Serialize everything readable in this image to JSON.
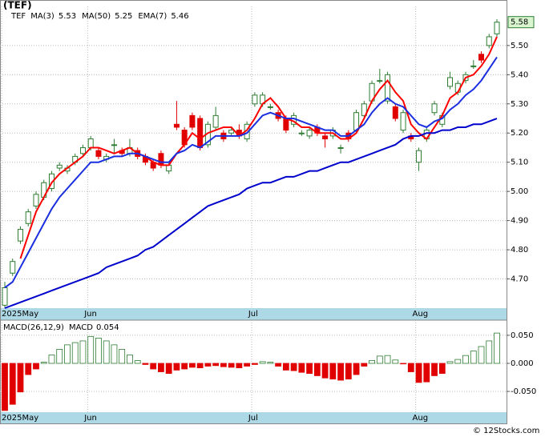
{
  "chart_data": [
    {
      "type": "candlestick",
      "title": "(TEF)",
      "ticker": "TEF",
      "categories": [
        "2025May",
        null,
        null,
        null,
        null,
        null,
        null,
        null,
        null,
        null,
        null,
        "Jun",
        null,
        null,
        null,
        null,
        null,
        null,
        null,
        null,
        null,
        null,
        null,
        null,
        null,
        null,
        null,
        null,
        null,
        null,
        null,
        null,
        "Jul",
        null,
        null,
        null,
        null,
        null,
        null,
        null,
        null,
        null,
        null,
        null,
        null,
        null,
        null,
        null,
        null,
        null,
        null,
        null,
        null,
        "Aug",
        null,
        null,
        null,
        null,
        null,
        null,
        null,
        null,
        null,
        null
      ],
      "open": [
        4.61,
        4.72,
        4.83,
        4.89,
        4.95,
        4.98,
        5.01,
        5.08,
        5.07,
        5.1,
        5.13,
        5.15,
        5.14,
        5.11,
        5.16,
        5.14,
        5.13,
        5.14,
        5.12,
        5.1,
        5.13,
        5.07,
        5.23,
        5.21,
        5.26,
        5.25,
        5.16,
        5.22,
        5.2,
        5.2,
        5.21,
        5.18,
        5.3,
        5.3,
        5.29,
        5.27,
        5.25,
        5.23,
        5.2,
        5.19,
        5.22,
        5.19,
        5.19,
        5.15,
        5.2,
        5.21,
        5.26,
        5.31,
        5.38,
        5.31,
        5.29,
        5.21,
        5.19,
        5.1,
        5.18,
        5.27,
        5.23,
        5.36,
        5.34,
        5.38,
        5.43,
        5.47,
        5.5,
        5.54
      ],
      "high": [
        4.69,
        4.77,
        4.88,
        4.94,
        5.0,
        5.04,
        5.07,
        5.1,
        5.09,
        5.13,
        5.16,
        5.19,
        5.15,
        5.13,
        5.18,
        5.15,
        5.18,
        5.15,
        5.13,
        5.11,
        5.14,
        5.1,
        5.31,
        5.22,
        5.27,
        5.26,
        5.24,
        5.29,
        5.21,
        5.22,
        5.23,
        5.24,
        5.34,
        5.34,
        5.3,
        5.28,
        5.26,
        5.27,
        5.21,
        5.22,
        5.23,
        5.2,
        5.22,
        5.16,
        5.21,
        5.28,
        5.31,
        5.38,
        5.42,
        5.41,
        5.3,
        5.28,
        5.2,
        5.15,
        5.22,
        5.31,
        5.27,
        5.41,
        5.38,
        5.41,
        5.45,
        5.48,
        5.54,
        5.59
      ],
      "low": [
        4.6,
        4.71,
        4.82,
        4.88,
        4.94,
        4.97,
        5.0,
        5.07,
        5.06,
        5.09,
        5.12,
        5.14,
        5.11,
        5.1,
        5.13,
        5.12,
        5.12,
        5.11,
        5.09,
        5.07,
        5.08,
        5.06,
        5.21,
        5.15,
        5.21,
        5.14,
        5.15,
        5.21,
        5.17,
        5.19,
        5.18,
        5.17,
        5.29,
        5.29,
        5.28,
        5.24,
        5.2,
        5.22,
        5.19,
        5.18,
        5.19,
        5.15,
        5.18,
        5.13,
        5.17,
        5.2,
        5.25,
        5.3,
        5.37,
        5.3,
        5.24,
        5.2,
        5.17,
        5.07,
        5.17,
        5.26,
        5.22,
        5.35,
        5.33,
        5.37,
        5.42,
        5.44,
        5.49,
        5.53
      ],
      "close": [
        4.67,
        4.76,
        4.87,
        4.93,
        4.99,
        5.03,
        5.06,
        5.09,
        5.08,
        5.12,
        5.15,
        5.18,
        5.12,
        5.12,
        5.16,
        5.13,
        5.15,
        5.12,
        5.1,
        5.08,
        5.09,
        5.09,
        5.22,
        5.16,
        5.22,
        5.15,
        5.23,
        5.26,
        5.18,
        5.21,
        5.19,
        5.23,
        5.33,
        5.33,
        5.29,
        5.25,
        5.21,
        5.26,
        5.2,
        5.21,
        5.2,
        5.18,
        5.21,
        5.15,
        5.18,
        5.27,
        5.3,
        5.37,
        5.38,
        5.4,
        5.25,
        5.27,
        5.18,
        5.14,
        5.21,
        5.3,
        5.26,
        5.39,
        5.37,
        5.4,
        5.43,
        5.45,
        5.53,
        5.58
      ],
      "up_color": "#2e7d32",
      "down_color": "#e00000",
      "series": [
        {
          "name": "MA(3)",
          "color": "#ff0000",
          "values": [
            null,
            null,
            4.77,
            4.85,
            4.93,
            4.98,
            5.03,
            5.06,
            5.08,
            5.1,
            5.12,
            5.15,
            5.15,
            5.14,
            5.13,
            5.14,
            5.15,
            5.13,
            5.12,
            5.1,
            5.09,
            5.09,
            5.13,
            5.16,
            5.2,
            5.18,
            5.2,
            5.21,
            5.22,
            5.22,
            5.19,
            5.21,
            5.25,
            5.3,
            5.32,
            5.29,
            5.25,
            5.24,
            5.22,
            5.22,
            5.2,
            5.2,
            5.2,
            5.18,
            5.18,
            5.2,
            5.25,
            5.31,
            5.35,
            5.38,
            5.34,
            5.31,
            5.23,
            5.2,
            5.18,
            5.22,
            5.26,
            5.32,
            5.34,
            5.39,
            5.4,
            5.43,
            5.47,
            5.53
          ]
        },
        {
          "name": "MA(50)",
          "color": "#0000cc",
          "values": [
            4.6,
            4.61,
            4.62,
            4.63,
            4.64,
            4.65,
            4.66,
            4.67,
            4.68,
            4.69,
            4.7,
            4.71,
            4.72,
            4.74,
            4.75,
            4.76,
            4.77,
            4.78,
            4.8,
            4.81,
            4.83,
            4.85,
            4.87,
            4.89,
            4.91,
            4.93,
            4.95,
            4.96,
            4.97,
            4.98,
            4.99,
            5.01,
            5.02,
            5.03,
            5.03,
            5.04,
            5.05,
            5.05,
            5.06,
            5.07,
            5.07,
            5.08,
            5.09,
            5.1,
            5.1,
            5.11,
            5.12,
            5.13,
            5.14,
            5.15,
            5.16,
            5.18,
            5.19,
            5.19,
            5.2,
            5.2,
            5.21,
            5.21,
            5.22,
            5.22,
            5.23,
            5.23,
            5.24,
            5.25
          ]
        },
        {
          "name": "EMA(7)",
          "color": "#1a2fe0",
          "values": [
            4.67,
            4.69,
            4.74,
            4.79,
            4.84,
            4.89,
            4.94,
            4.98,
            5.01,
            5.04,
            5.07,
            5.1,
            5.1,
            5.11,
            5.12,
            5.12,
            5.13,
            5.13,
            5.12,
            5.11,
            5.1,
            5.1,
            5.13,
            5.14,
            5.16,
            5.15,
            5.17,
            5.19,
            5.19,
            5.19,
            5.19,
            5.2,
            5.23,
            5.26,
            5.27,
            5.26,
            5.25,
            5.25,
            5.24,
            5.23,
            5.22,
            5.21,
            5.21,
            5.19,
            5.19,
            5.21,
            5.23,
            5.27,
            5.3,
            5.32,
            5.3,
            5.29,
            5.26,
            5.23,
            5.22,
            5.24,
            5.25,
            5.28,
            5.3,
            5.33,
            5.35,
            5.38,
            5.42,
            5.46
          ]
        }
      ],
      "ylim": [
        4.6,
        5.634
      ],
      "yticks": [
        {
          "value": 4.7,
          "label": "4.70"
        },
        {
          "value": 4.8,
          "label": "4.80"
        },
        {
          "value": 4.9,
          "label": "4.90"
        },
        {
          "value": 5.0,
          "label": "5.00"
        },
        {
          "value": 5.1,
          "label": "5.10"
        },
        {
          "value": 5.2,
          "label": "5.20"
        },
        {
          "value": 5.3,
          "label": "5.30"
        },
        {
          "value": 5.4,
          "label": "5.40"
        },
        {
          "value": 5.5,
          "label": "5.50"
        }
      ],
      "grid": true
    },
    {
      "type": "bar",
      "title": "MACD(26,12,9)",
      "name": "MACD",
      "values": [
        -0.084,
        -0.073,
        -0.051,
        -0.02,
        -0.01,
        0.002,
        0.015,
        0.025,
        0.033,
        0.037,
        0.04,
        0.048,
        0.045,
        0.04,
        0.033,
        0.025,
        0.015,
        0.005,
        -0.002,
        -0.01,
        -0.015,
        -0.018,
        -0.012,
        -0.01,
        -0.007,
        -0.008,
        -0.005,
        -0.004,
        -0.006,
        -0.007,
        -0.008,
        -0.005,
        -0.002,
        0.003,
        0.002,
        -0.005,
        -0.012,
        -0.013,
        -0.016,
        -0.018,
        -0.022,
        -0.026,
        -0.028,
        -0.03,
        -0.028,
        -0.02,
        -0.005,
        0.005,
        0.013,
        0.014,
        0.006,
        -0.001,
        -0.015,
        -0.034,
        -0.033,
        -0.022,
        -0.018,
        0.003,
        0.007,
        0.014,
        0.022,
        0.03,
        0.04,
        0.054
      ],
      "up_color": "#2e7d32",
      "down_color": "#e00000",
      "ylim": [
        -0.087,
        0.077
      ],
      "yticks": [
        {
          "value": 0.05,
          "label": "0.050"
        },
        {
          "value": 0,
          "label": "0.000"
        },
        {
          "value": -0.05,
          "label": "-0.050"
        }
      ],
      "grid": true
    }
  ],
  "watermark": "© 12Stocks.com"
}
